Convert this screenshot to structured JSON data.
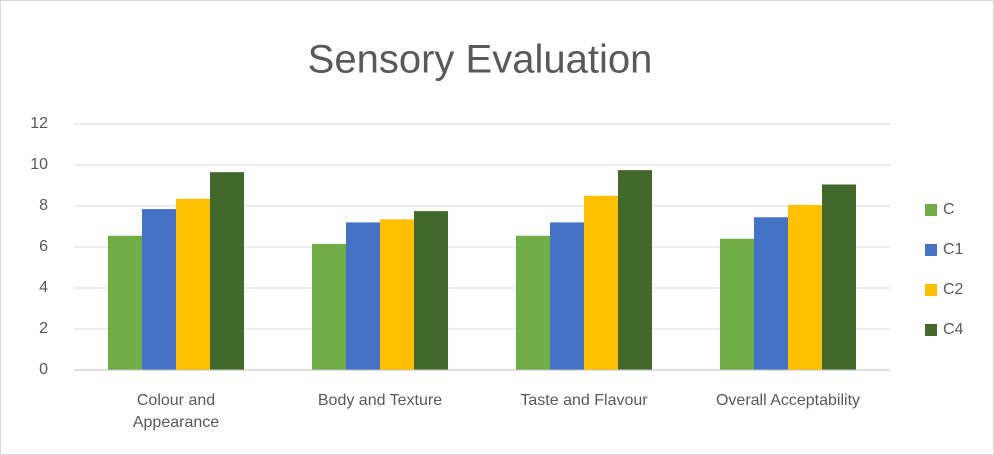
{
  "chart_data": {
    "type": "bar",
    "title": "Sensory Evaluation",
    "categories": [
      "Colour  and Appearance",
      "Body and Texture",
      "Taste and Flavour",
      "Overall Acceptability"
    ],
    "series": [
      {
        "name": "C",
        "color": "#70ad47",
        "values": [
          6.55,
          6.15,
          6.55,
          6.4
        ]
      },
      {
        "name": "C1",
        "color": "#4472c4",
        "values": [
          7.85,
          7.2,
          7.2,
          7.45
        ]
      },
      {
        "name": "C2",
        "color": "#ffc000",
        "values": [
          8.35,
          7.35,
          8.5,
          8.05
        ]
      },
      {
        "name": "C4",
        "color": "#43682b",
        "values": [
          9.65,
          7.75,
          9.75,
          9.05
        ]
      }
    ],
    "ylim": [
      0,
      12
    ],
    "yticks": [
      0,
      2,
      4,
      6,
      8,
      10,
      12
    ],
    "grid": true,
    "legend": "right"
  }
}
